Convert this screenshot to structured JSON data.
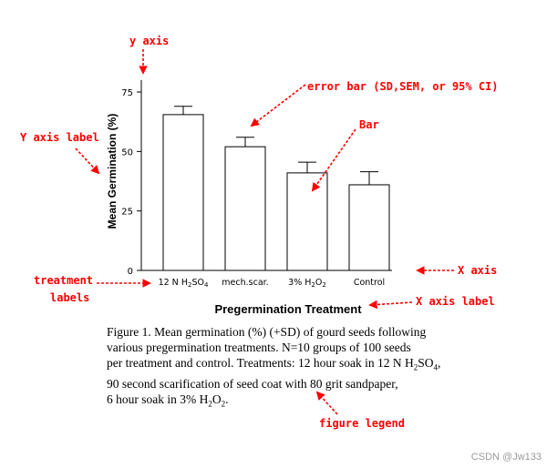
{
  "chart_data": {
    "type": "bar",
    "categories": [
      "12 N H2SO4",
      "mech.scar.",
      "3% H2O2",
      "Control"
    ],
    "values": [
      65.5,
      52,
      41,
      36
    ],
    "errors": [
      3.5,
      4,
      4.5,
      5.5
    ],
    "ylabel": "Mean Germination (%)",
    "xlabel": "Pregermination Treatment",
    "yticks": [
      0,
      25,
      50,
      75
    ],
    "ylim": [
      0,
      80
    ],
    "grid": false,
    "bar_fill": "#ffffff",
    "bar_stroke": "#000000"
  },
  "annotations": {
    "y_axis": "y axis",
    "error_bar": "error bar (SD,SEM, or 95% CI)",
    "bar": "Bar",
    "y_axis_label": "Y axis label",
    "treatment_labels": [
      "treatment",
      "labels"
    ],
    "x_axis": "X axis",
    "x_axis_label": "X axis label",
    "figure_legend": "figure legend",
    "color": "#ff0000"
  },
  "caption": {
    "lines": [
      "Figure 1. Mean germination (%) (+SD) of gourd seeds following",
      "various pregermination treatments. N=10 groups of 100 seeds",
      "per treatment and control. Treatments: 12 hour soak in 12 N H2SO4,",
      "90 second scarification of seed coat with 80 grit sandpaper,",
      "6 hour soak in 3% H2O2."
    ]
  },
  "watermark": "CSDN @Jw133"
}
